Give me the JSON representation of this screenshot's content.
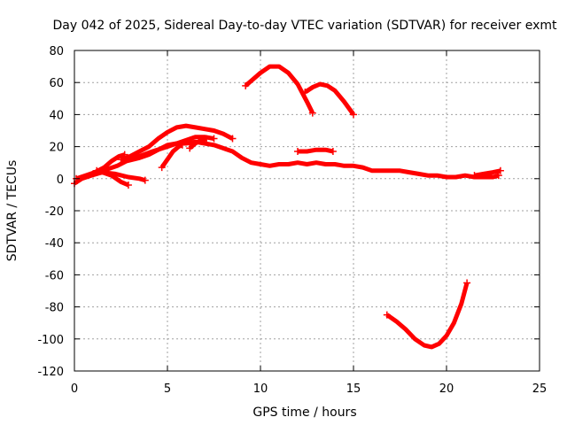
{
  "chart_data": {
    "type": "line",
    "title": "Day 042 of 2025, Sidereal Day-to-day VTEC variation (SDTVAR) for receiver exmt",
    "xlabel": "GPS time / hours",
    "ylabel": "SDTVAR / TECUs",
    "xlim": [
      0,
      25
    ],
    "ylim": [
      -120,
      80
    ],
    "xticks": [
      0,
      5,
      10,
      15,
      20,
      25
    ],
    "yticks": [
      -120,
      -100,
      -80,
      -60,
      -40,
      -20,
      0,
      20,
      40,
      60,
      80
    ],
    "grid": true,
    "legend": "none",
    "color": "#ff0000",
    "series": [
      {
        "name": "s1",
        "points": [
          [
            0,
            -3
          ],
          [
            0.4,
            0
          ],
          [
            0.9,
            2
          ],
          [
            1.5,
            4
          ],
          [
            2.2,
            3
          ],
          [
            2.9,
            1
          ],
          [
            3.5,
            0
          ],
          [
            3.8,
            -1
          ]
        ]
      },
      {
        "name": "s2",
        "points": [
          [
            0.1,
            0
          ],
          [
            0.6,
            2
          ],
          [
            1.1,
            4
          ],
          [
            1.6,
            7
          ],
          [
            2.0,
            11
          ],
          [
            2.4,
            14
          ],
          [
            2.7,
            15
          ]
        ]
      },
      {
        "name": "s3",
        "points": [
          [
            1.0,
            3
          ],
          [
            1.5,
            4
          ],
          [
            2.0,
            2
          ],
          [
            2.5,
            -2
          ],
          [
            2.9,
            -4
          ]
        ]
      },
      {
        "name": "s4",
        "points": [
          [
            1.2,
            5
          ],
          [
            1.8,
            6
          ],
          [
            2.3,
            8
          ],
          [
            2.8,
            11
          ],
          [
            3.5,
            13
          ],
          [
            4.0,
            15
          ],
          [
            4.5,
            18
          ],
          [
            5.0,
            21
          ],
          [
            5.5,
            22
          ],
          [
            6.0,
            24
          ],
          [
            6.5,
            26
          ],
          [
            7.0,
            26
          ],
          [
            7.5,
            25
          ]
        ]
      },
      {
        "name": "s5",
        "points": [
          [
            2.5,
            12
          ],
          [
            3.0,
            14
          ],
          [
            3.5,
            17
          ],
          [
            4.0,
            20
          ],
          [
            4.5,
            25
          ],
          [
            5.0,
            29
          ],
          [
            5.5,
            32
          ],
          [
            6.0,
            33
          ],
          [
            6.5,
            32
          ],
          [
            7.0,
            31
          ],
          [
            7.5,
            30
          ],
          [
            8.0,
            28
          ],
          [
            8.5,
            25
          ]
        ]
      },
      {
        "name": "s6",
        "points": [
          [
            2.7,
            12
          ],
          [
            3.5,
            14
          ],
          [
            4.2,
            17
          ],
          [
            5.0,
            20
          ],
          [
            5.5,
            22
          ],
          [
            6.0,
            22
          ],
          [
            6.5,
            23
          ],
          [
            7.0,
            22
          ],
          [
            7.5,
            21
          ],
          [
            8.0,
            19
          ],
          [
            8.5,
            17
          ],
          [
            9.0,
            13
          ],
          [
            9.5,
            10
          ],
          [
            10.0,
            9
          ],
          [
            10.5,
            8
          ],
          [
            11.0,
            9
          ],
          [
            11.5,
            9
          ],
          [
            12.0,
            10
          ],
          [
            12.5,
            9
          ],
          [
            13.0,
            10
          ],
          [
            13.5,
            9
          ],
          [
            14.0,
            9
          ],
          [
            14.5,
            8
          ],
          [
            15.0,
            8
          ],
          [
            15.5,
            7
          ],
          [
            16.0,
            5
          ],
          [
            16.5,
            5
          ],
          [
            17.0,
            5
          ],
          [
            17.5,
            5
          ],
          [
            18.0,
            4
          ],
          [
            18.5,
            3
          ],
          [
            19.0,
            2
          ],
          [
            19.5,
            2
          ],
          [
            20.0,
            1
          ],
          [
            20.5,
            1
          ],
          [
            21.0,
            2
          ],
          [
            21.5,
            1
          ],
          [
            22.0,
            1
          ],
          [
            22.5,
            1
          ],
          [
            22.8,
            2
          ]
        ]
      },
      {
        "name": "s7",
        "points": [
          [
            4.7,
            7
          ],
          [
            5.0,
            12
          ],
          [
            5.3,
            17
          ],
          [
            5.6,
            20
          ],
          [
            5.8,
            21
          ]
        ]
      },
      {
        "name": "s8",
        "points": [
          [
            6.2,
            19
          ],
          [
            6.5,
            22
          ],
          [
            6.8,
            24
          ],
          [
            7.1,
            25
          ]
        ]
      },
      {
        "name": "s9",
        "points": [
          [
            12.0,
            17
          ],
          [
            12.5,
            17
          ],
          [
            13.0,
            18
          ],
          [
            13.5,
            18
          ],
          [
            13.9,
            17
          ]
        ]
      },
      {
        "name": "s10",
        "points": [
          [
            9.2,
            58
          ],
          [
            9.5,
            61
          ],
          [
            10.0,
            66
          ],
          [
            10.5,
            70
          ],
          [
            11.0,
            70
          ],
          [
            11.5,
            66
          ],
          [
            12.0,
            59
          ],
          [
            12.5,
            48
          ],
          [
            12.8,
            41
          ]
        ]
      },
      {
        "name": "s11",
        "points": [
          [
            12.4,
            54
          ],
          [
            12.8,
            57
          ],
          [
            13.2,
            59
          ],
          [
            13.6,
            58
          ],
          [
            14.0,
            55
          ],
          [
            14.5,
            48
          ],
          [
            15.0,
            40
          ]
        ]
      },
      {
        "name": "s12",
        "points": [
          [
            16.8,
            -85
          ],
          [
            17.3,
            -89
          ],
          [
            17.8,
            -94
          ],
          [
            18.3,
            -100
          ],
          [
            18.8,
            -104
          ],
          [
            19.2,
            -105
          ],
          [
            19.6,
            -103
          ],
          [
            20.0,
            -98
          ],
          [
            20.4,
            -90
          ],
          [
            20.8,
            -78
          ],
          [
            21.1,
            -65
          ]
        ]
      },
      {
        "name": "s13",
        "points": [
          [
            21.5,
            2
          ],
          [
            22.0,
            3
          ],
          [
            22.5,
            4
          ],
          [
            22.9,
            5
          ]
        ]
      }
    ]
  }
}
